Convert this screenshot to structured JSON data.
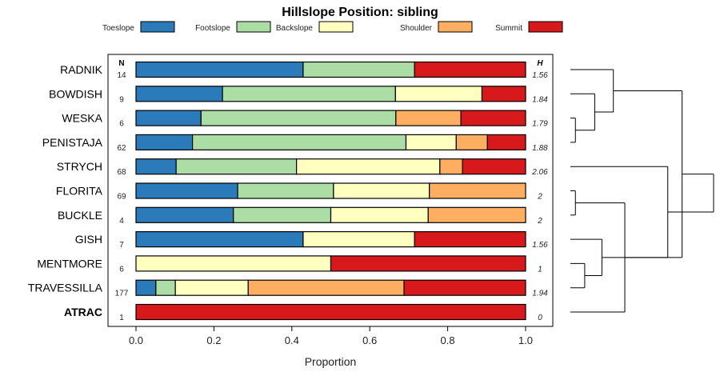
{
  "chart_data": {
    "type": "bar",
    "orientation": "horizontal",
    "stacked": true,
    "title": "Hillslope Position: sibling",
    "xlabel": "Proportion",
    "ylabel": "",
    "xlim": [
      0,
      1
    ],
    "xticks": [
      "0.0",
      "0.2",
      "0.4",
      "0.6",
      "0.8",
      "1.0"
    ],
    "legend_placement": "top",
    "n_header": "N",
    "h_header": "H",
    "legend": [
      {
        "name": "Toeslope",
        "color": "#2b7bba"
      },
      {
        "name": "Footslope",
        "color": "#abdda4"
      },
      {
        "name": "Backslope",
        "color": "#ffffbf"
      },
      {
        "name": "Shoulder",
        "color": "#fdae61"
      },
      {
        "name": "Summit",
        "color": "#d7191c"
      }
    ],
    "categories": [
      "RADNIK",
      "BOWDISH",
      "WESKA",
      "PENISTAJA",
      "STRYCH",
      "FLORITA",
      "BUCKLE",
      "GISH",
      "MENTMORE",
      "TRAVESSILLA",
      "ATRAC"
    ],
    "bold_category": "ATRAC",
    "n": [
      "14",
      "9",
      "6",
      "62",
      "68",
      "69",
      "4",
      "7",
      "6",
      "177",
      "1"
    ],
    "h": [
      "1.56",
      "1.84",
      "1.79",
      "1.88",
      "2.06",
      "2",
      "2",
      "1.56",
      "1",
      "1.94",
      "0"
    ],
    "series": [
      {
        "name": "Toeslope",
        "values": [
          0.429,
          0.222,
          0.167,
          0.145,
          0.103,
          0.261,
          0.25,
          0.429,
          0,
          0.051,
          0
        ]
      },
      {
        "name": "Footslope",
        "values": [
          0.286,
          0.444,
          0.5,
          0.548,
          0.309,
          0.246,
          0.25,
          0,
          0,
          0.05,
          0
        ]
      },
      {
        "name": "Backslope",
        "values": [
          0,
          0.222,
          0,
          0.129,
          0.368,
          0.246,
          0.25,
          0.286,
          0.5,
          0.187,
          0
        ]
      },
      {
        "name": "Shoulder",
        "values": [
          0,
          0,
          0.167,
          0.08,
          0.058,
          0.247,
          0.25,
          0,
          0,
          0.4,
          0
        ]
      },
      {
        "name": "Summit",
        "values": [
          0.285,
          0.112,
          0.166,
          0.098,
          0.162,
          0,
          0,
          0.285,
          0.5,
          0.312,
          1
        ]
      }
    ],
    "dendrogram": {
      "merges": [
        [
          3,
          4,
          0.035
        ],
        [
          6,
          7,
          0.035
        ],
        [
          9,
          10,
          0.1
        ],
        [
          2,
          12,
          0.17
        ],
        [
          8,
          14,
          0.22
        ],
        [
          1,
          15,
          0.3
        ],
        [
          11,
          13,
          0.38
        ],
        [
          5,
          16,
          0.68
        ],
        [
          17,
          18,
          0.78
        ],
        [
          19,
          20,
          1.0
        ]
      ]
    }
  }
}
